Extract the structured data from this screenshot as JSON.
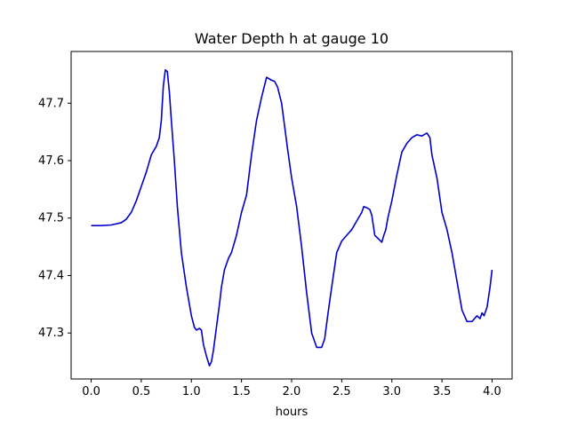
{
  "chart_data": {
    "type": "line",
    "title": "Water Depth h at gauge 10",
    "xlabel": "hours",
    "ylabel": "",
    "xlim": [
      -0.2,
      4.2
    ],
    "ylim": [
      47.22,
      47.79
    ],
    "xticks": [
      "0.0",
      "0.5",
      "1.0",
      "1.5",
      "2.0",
      "2.5",
      "3.0",
      "3.5",
      "4.0"
    ],
    "yticks": [
      "47.3",
      "47.4",
      "47.5",
      "47.6",
      "47.7"
    ],
    "grid": false,
    "legend": "none",
    "series": [
      {
        "color": "#0000cc",
        "x": [
          0.0,
          0.1,
          0.2,
          0.3,
          0.35,
          0.4,
          0.45,
          0.5,
          0.55,
          0.6,
          0.65,
          0.68,
          0.7,
          0.72,
          0.74,
          0.76,
          0.78,
          0.8,
          0.83,
          0.86,
          0.9,
          0.95,
          1.0,
          1.03,
          1.05,
          1.08,
          1.1,
          1.12,
          1.15,
          1.18,
          1.2,
          1.22,
          1.25,
          1.28,
          1.3,
          1.33,
          1.37,
          1.4,
          1.45,
          1.5,
          1.55,
          1.6,
          1.65,
          1.7,
          1.75,
          1.8,
          1.83,
          1.86,
          1.9,
          1.93,
          1.96,
          2.0,
          2.05,
          2.1,
          2.15,
          2.2,
          2.25,
          2.3,
          2.33,
          2.36,
          2.4,
          2.45,
          2.5,
          2.55,
          2.6,
          2.65,
          2.7,
          2.72,
          2.75,
          2.78,
          2.8,
          2.83,
          2.86,
          2.9,
          2.92,
          2.94,
          2.96,
          3.0,
          3.05,
          3.1,
          3.15,
          3.2,
          3.25,
          3.3,
          3.35,
          3.38,
          3.4,
          3.45,
          3.5,
          3.55,
          3.6,
          3.65,
          3.7,
          3.75,
          3.8,
          3.85,
          3.88,
          3.9,
          3.92,
          3.95,
          3.98,
          4.0
        ],
        "y": [
          47.487,
          47.487,
          47.488,
          47.492,
          47.498,
          47.51,
          47.53,
          47.555,
          47.58,
          47.61,
          47.625,
          47.64,
          47.67,
          47.73,
          47.758,
          47.755,
          47.72,
          47.67,
          47.6,
          47.52,
          47.44,
          47.38,
          47.33,
          47.31,
          47.305,
          47.308,
          47.305,
          47.28,
          47.26,
          47.243,
          47.25,
          47.27,
          47.31,
          47.35,
          47.38,
          47.41,
          47.43,
          47.44,
          47.47,
          47.51,
          47.54,
          47.61,
          47.67,
          47.71,
          47.745,
          47.74,
          47.738,
          47.728,
          47.7,
          47.66,
          47.62,
          47.57,
          47.52,
          47.45,
          47.37,
          47.3,
          47.275,
          47.275,
          47.29,
          47.33,
          47.38,
          47.44,
          47.46,
          47.47,
          47.48,
          47.495,
          47.51,
          47.52,
          47.518,
          47.515,
          47.505,
          47.47,
          47.465,
          47.458,
          47.47,
          47.48,
          47.5,
          47.53,
          47.575,
          47.615,
          47.63,
          47.64,
          47.645,
          47.643,
          47.648,
          47.64,
          47.61,
          47.57,
          47.51,
          47.48,
          47.44,
          47.39,
          47.34,
          47.32,
          47.32,
          47.33,
          47.325,
          47.335,
          47.33,
          47.345,
          47.38,
          47.41
        ]
      }
    ]
  }
}
